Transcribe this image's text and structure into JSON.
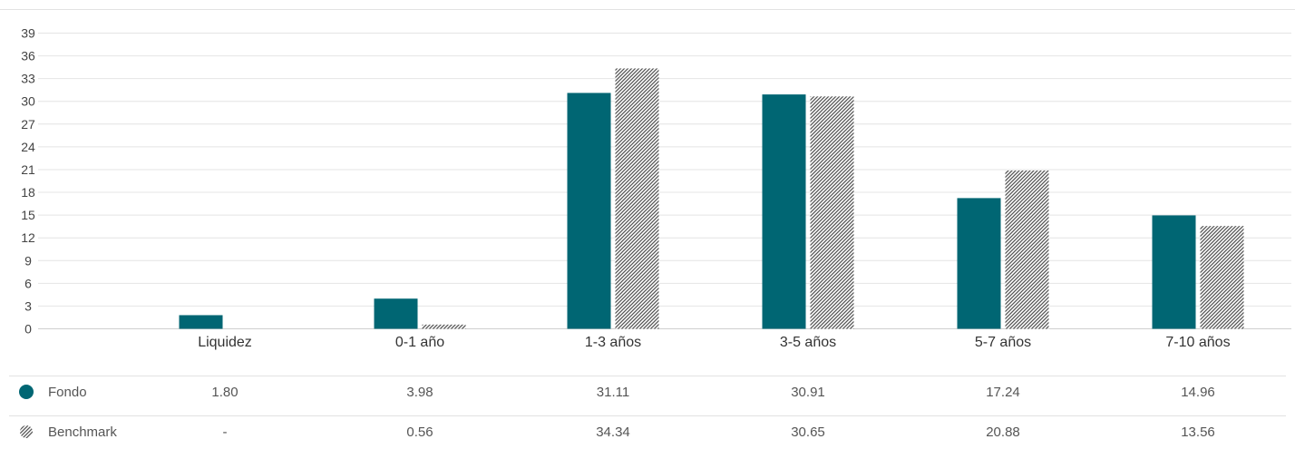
{
  "chart_data": {
    "type": "bar",
    "categories": [
      "Liquidez",
      "0-1 año",
      "1-3 años",
      "3-5 años",
      "5-7 años",
      "7-10 años"
    ],
    "series": [
      {
        "name": "Fondo",
        "values": [
          1.8,
          3.98,
          31.11,
          30.91,
          17.24,
          14.96
        ],
        "labels": [
          "1.80",
          "3.98",
          "31.11",
          "30.91",
          "17.24",
          "14.96"
        ],
        "color": "#006673",
        "pattern": "solid"
      },
      {
        "name": "Benchmark",
        "values": [
          null,
          0.56,
          34.34,
          30.65,
          20.88,
          13.56
        ],
        "labels": [
          "-",
          "0.56",
          "34.34",
          "30.65",
          "20.88",
          "13.56"
        ],
        "color": "#555555",
        "pattern": "hatch"
      }
    ],
    "yticks": [
      0,
      3,
      6,
      9,
      12,
      15,
      18,
      21,
      24,
      27,
      30,
      33,
      36,
      39
    ],
    "ylim": [
      0,
      39
    ],
    "grid": true,
    "legend": "table-below"
  }
}
